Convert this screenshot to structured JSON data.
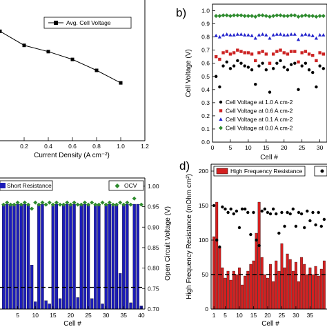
{
  "chart_data": [
    {
      "id": "a",
      "type": "line",
      "panel_label": "",
      "xlabel": "Current Density (A cm⁻²)",
      "ylabel": "",
      "xlim": [
        0,
        1.2
      ],
      "ylim": [
        0.55,
        1.0
      ],
      "x_ticks": [
        "0.2",
        "0.4",
        "0.6",
        "0.8",
        "1.0",
        "1.2"
      ],
      "legend": "top-right",
      "series": [
        {
          "name": "Avg. Cell Voltage",
          "color": "#000000",
          "x": [
            0.0,
            0.2,
            0.4,
            0.6,
            0.8,
            1.0
          ],
          "y": [
            0.9,
            0.855,
            0.835,
            0.81,
            0.775,
            0.735
          ]
        }
      ]
    },
    {
      "id": "b",
      "type": "scatter",
      "panel_label": "b)",
      "xlabel": "Cell #",
      "ylabel": "Cell Voltage (V)",
      "xlim": [
        0,
        32
      ],
      "ylim": [
        0.0,
        1.05
      ],
      "x_ticks": [
        "0",
        "5",
        "10",
        "15",
        "20",
        "25",
        "30"
      ],
      "y_ticks": [
        "0.0",
        "0.1",
        "0.2",
        "0.3",
        "0.4",
        "0.5",
        "0.6",
        "0.7",
        "0.8",
        "0.9",
        "1.0"
      ],
      "legend": "bottom-left",
      "series": [
        {
          "name": "Cell Voltage at 1.0 A cm-2",
          "marker": "circle",
          "color": "#000000",
          "x": [
            1,
            2,
            3,
            4,
            5,
            6,
            7,
            8,
            9,
            10,
            11,
            12,
            13,
            14,
            15,
            16,
            17,
            18,
            19,
            20,
            21,
            22,
            23,
            24,
            25,
            26,
            27,
            28,
            29,
            30,
            31
          ],
          "y": [
            0.5,
            0.42,
            0.58,
            0.61,
            0.56,
            0.58,
            0.62,
            0.6,
            0.58,
            0.57,
            0.55,
            0.44,
            0.58,
            0.6,
            0.55,
            0.38,
            0.56,
            0.6,
            0.62,
            0.57,
            0.55,
            0.59,
            0.6,
            0.4,
            0.58,
            0.6,
            0.55,
            0.53,
            0.42,
            0.58,
            0.56
          ]
        },
        {
          "name": "Cell Voltage at 0.6 A cm-2",
          "marker": "square",
          "color": "#cc2222",
          "x": [
            1,
            2,
            3,
            4,
            5,
            6,
            7,
            8,
            9,
            10,
            11,
            12,
            13,
            14,
            15,
            16,
            17,
            18,
            19,
            20,
            21,
            22,
            23,
            24,
            25,
            26,
            27,
            28,
            29,
            30,
            31
          ],
          "y": [
            0.65,
            0.63,
            0.68,
            0.69,
            0.67,
            0.68,
            0.7,
            0.69,
            0.68,
            0.68,
            0.67,
            0.62,
            0.68,
            0.69,
            0.67,
            0.6,
            0.67,
            0.69,
            0.7,
            0.68,
            0.67,
            0.69,
            0.69,
            0.61,
            0.68,
            0.69,
            0.67,
            0.66,
            0.62,
            0.68,
            0.67
          ]
        },
        {
          "name": "Cell Voltage at 0.1 A cm-2",
          "marker": "triangle",
          "color": "#2222cc",
          "x": [
            1,
            2,
            3,
            4,
            5,
            6,
            7,
            8,
            9,
            10,
            11,
            12,
            13,
            14,
            15,
            16,
            17,
            18,
            19,
            20,
            21,
            22,
            23,
            24,
            25,
            26,
            27,
            28,
            29,
            30,
            31
          ],
          "y": [
            0.81,
            0.8,
            0.815,
            0.82,
            0.815,
            0.815,
            0.82,
            0.82,
            0.815,
            0.815,
            0.81,
            0.79,
            0.815,
            0.82,
            0.815,
            0.79,
            0.815,
            0.82,
            0.82,
            0.815,
            0.815,
            0.82,
            0.82,
            0.78,
            0.815,
            0.82,
            0.815,
            0.81,
            0.79,
            0.815,
            0.815
          ]
        },
        {
          "name": "Cell Voltage at 0.0 A cm-2",
          "marker": "diamond",
          "color": "#2e8b2e",
          "x": [
            1,
            2,
            3,
            4,
            5,
            6,
            7,
            8,
            9,
            10,
            11,
            12,
            13,
            14,
            15,
            16,
            17,
            18,
            19,
            20,
            21,
            22,
            23,
            24,
            25,
            26,
            27,
            28,
            29,
            30,
            31
          ],
          "y": [
            0.96,
            0.96,
            0.965,
            0.965,
            0.96,
            0.965,
            0.965,
            0.965,
            0.96,
            0.96,
            0.96,
            0.955,
            0.965,
            0.965,
            0.96,
            0.955,
            0.96,
            0.965,
            0.965,
            0.96,
            0.96,
            0.965,
            0.965,
            0.955,
            0.96,
            0.965,
            0.96,
            0.96,
            0.955,
            0.96,
            0.96
          ]
        }
      ]
    },
    {
      "id": "c",
      "type": "bar",
      "panel_label": "",
      "xlabel": "Cell #",
      "ylabel_right": "Open Circuit Voltage (V)",
      "xlim": [
        0,
        41
      ],
      "y_right_lim": [
        0.7,
        1.02
      ],
      "x_ticks": [
        "5",
        "10",
        "15",
        "20",
        "25",
        "30",
        "35",
        "40"
      ],
      "y_right_ticks": [
        "0.70",
        "0.75",
        "0.80",
        "0.85",
        "0.90",
        "0.95",
        "1.00"
      ],
      "legend": "top",
      "bar_full": 1.0,
      "dashed_level_right": 0.753,
      "bars": {
        "name": "Short Resistance",
        "color": "#1c1cb8",
        "x": [
          1,
          2,
          3,
          4,
          5,
          6,
          7,
          8,
          9,
          10,
          11,
          12,
          13,
          14,
          15,
          16,
          17,
          18,
          19,
          20,
          21,
          22,
          23,
          24,
          25,
          26,
          27,
          28,
          29,
          30,
          31,
          32,
          33,
          34,
          35,
          36,
          37,
          38,
          39,
          40
        ],
        "values": [
          1,
          1,
          1,
          1,
          1,
          1,
          1,
          1,
          0.42,
          0.07,
          1,
          1,
          0.08,
          0.05,
          1,
          1,
          0.1,
          1,
          1,
          1,
          1,
          0.11,
          1,
          1,
          1,
          0.1,
          1,
          1,
          0.05,
          1,
          1,
          1,
          1,
          0.34,
          1,
          1,
          0.06,
          1,
          1,
          0.03
        ]
      },
      "scatter": {
        "name": "OCV",
        "color": "#2e8b2e",
        "x": [
          1,
          2,
          3,
          4,
          5,
          6,
          7,
          8,
          9,
          10,
          11,
          12,
          13,
          14,
          15,
          16,
          17,
          18,
          19,
          20,
          21,
          22,
          23,
          24,
          25,
          26,
          27,
          28,
          29,
          30,
          31,
          32,
          33,
          34,
          35,
          36,
          37,
          38,
          39,
          40
        ],
        "y": [
          0.955,
          0.96,
          0.955,
          0.955,
          0.96,
          0.955,
          0.96,
          0.955,
          0.945,
          0.96,
          0.955,
          0.96,
          0.955,
          0.96,
          0.955,
          0.96,
          0.955,
          0.955,
          0.96,
          0.955,
          0.96,
          0.955,
          0.955,
          0.96,
          0.955,
          0.96,
          0.955,
          0.955,
          0.96,
          0.955,
          0.96,
          0.955,
          0.955,
          0.96,
          0.955,
          0.96,
          0.955,
          0.97,
          1.0,
          0.955
        ]
      }
    },
    {
      "id": "d",
      "type": "bar",
      "panel_label": "d)",
      "xlabel": "Cell #",
      "ylabel": "High Frequency Resistance (mOhm cm²)",
      "xlim": [
        0,
        41
      ],
      "ylim": [
        0,
        210
      ],
      "x_ticks": [
        "1",
        "5",
        "10",
        "15",
        "20",
        "25",
        "30",
        "35"
      ],
      "y_ticks": [
        "0",
        "50",
        "100",
        "150",
        "200"
      ],
      "legend": "top",
      "dashed_level": 50,
      "bars": {
        "name": "High Frequency Resistance",
        "color": "#d42020",
        "x": [
          1,
          2,
          3,
          4,
          5,
          6,
          7,
          8,
          9,
          10,
          11,
          12,
          13,
          14,
          15,
          16,
          17,
          18,
          19,
          20,
          21,
          22,
          23,
          24,
          25,
          26,
          27,
          28,
          29,
          30,
          31,
          32,
          33,
          34,
          35,
          36,
          37,
          38,
          39,
          40
        ],
        "values": [
          105,
          155,
          90,
          60,
          45,
          55,
          42,
          55,
          50,
          60,
          35,
          48,
          55,
          65,
          70,
          110,
          155,
          75,
          50,
          45,
          65,
          40,
          70,
          55,
          95,
          60,
          80,
          72,
          55,
          68,
          40,
          75,
          65,
          50,
          60,
          50,
          62,
          48,
          58,
          70
        ]
      },
      "scatter": {
        "color": "#000000",
        "x": [
          1,
          2,
          3,
          4,
          5,
          6,
          7,
          8,
          9,
          10,
          11,
          12,
          13,
          14,
          15,
          16,
          17,
          18,
          19,
          20,
          21,
          22,
          23,
          24,
          25,
          26,
          27,
          28,
          29,
          30,
          31,
          32,
          33,
          34,
          35,
          36,
          37,
          38,
          39,
          40
        ],
        "y": [
          150,
          100,
          90,
          148,
          145,
          140,
          145,
          138,
          142,
          118,
          145,
          145,
          140,
          108,
          140,
          100,
          92,
          142,
          145,
          140,
          138,
          145,
          138,
          110,
          140,
          120,
          140,
          138,
          145,
          120,
          140,
          138,
          118,
          142,
          128,
          140,
          122,
          140,
          120,
          130
        ]
      }
    }
  ]
}
